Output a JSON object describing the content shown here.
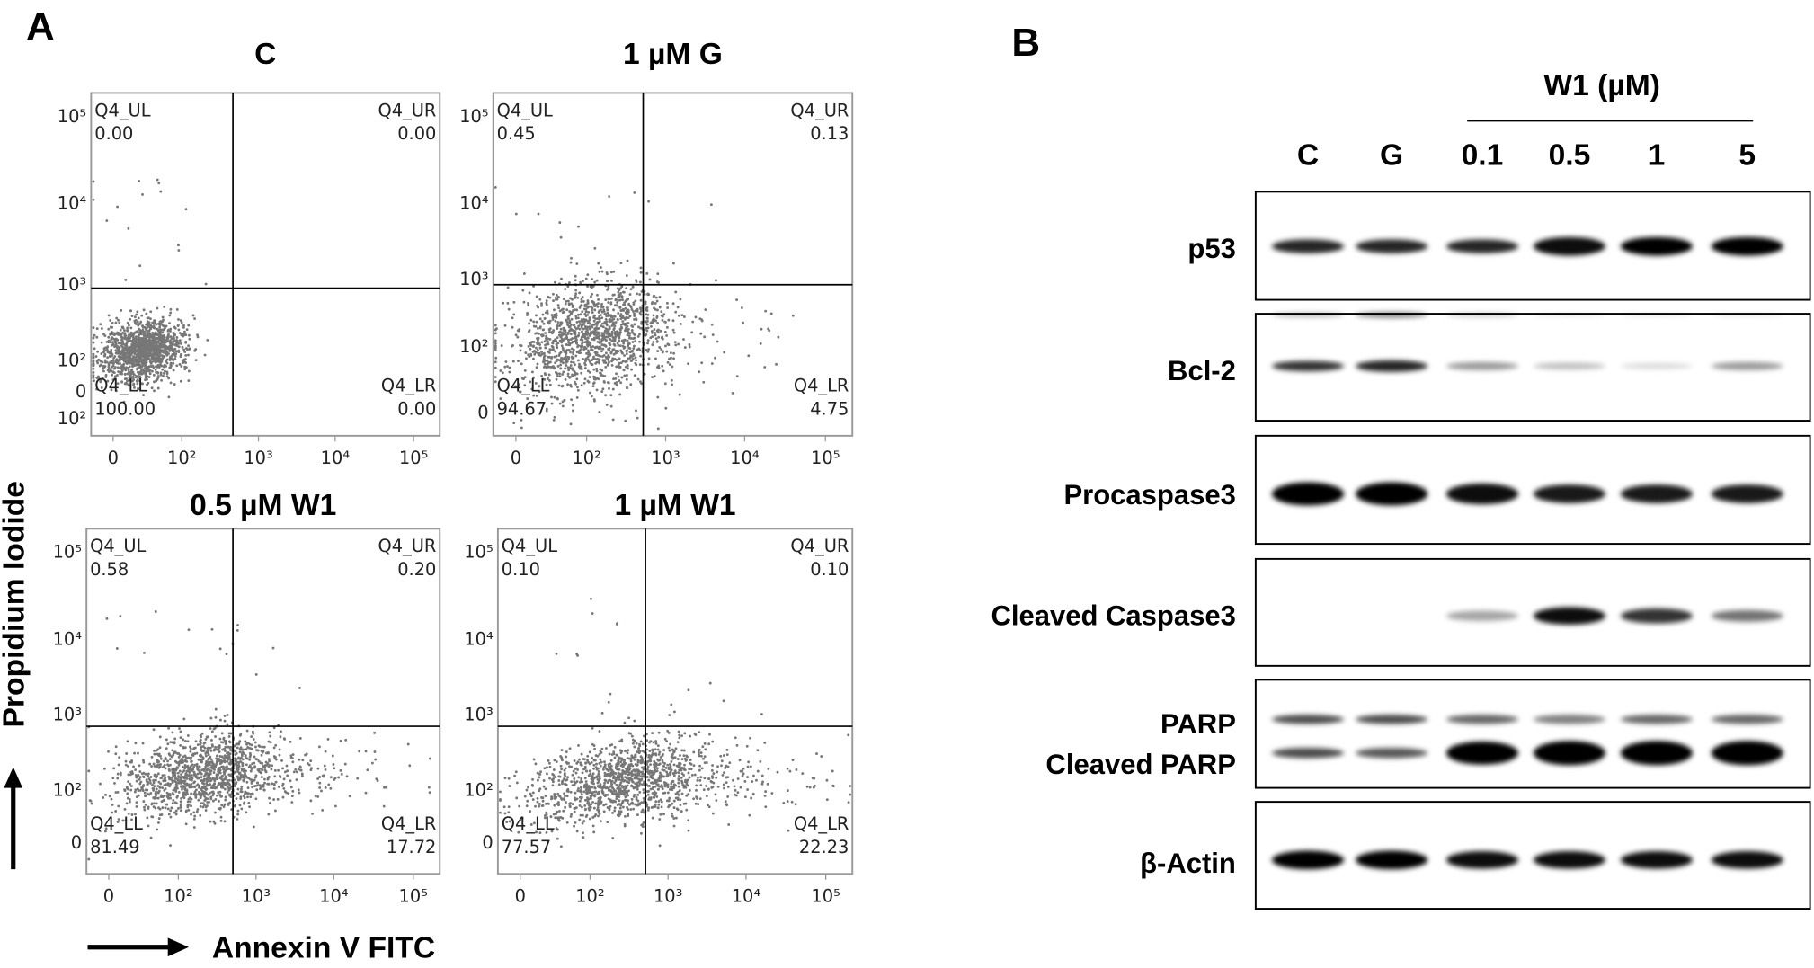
{
  "panel_a": {
    "label": "A",
    "x_axis_label": "Annexin V FITC",
    "y_axis_label": "Propidium Iodide",
    "plots": [
      {
        "title": "C",
        "quadrants": {
          "UL": {
            "name": "Q4_UL",
            "value": "0.00"
          },
          "UR": {
            "name": "Q4_UR",
            "value": "0.00"
          },
          "LL": {
            "name": "Q4_LL",
            "value": "100.00"
          },
          "LR": {
            "name": "Q4_LR",
            "value": "0.00"
          }
        },
        "yticks": [
          "10⁵",
          "10⁴",
          "10³",
          "10²",
          "0",
          "10²"
        ],
        "xticks": [
          "0",
          "10²",
          "10³",
          "10⁴",
          "10⁵"
        ]
      },
      {
        "title": "1 µM G",
        "quadrants": {
          "UL": {
            "name": "Q4_UL",
            "value": "0.45"
          },
          "UR": {
            "name": "Q4_UR",
            "value": "0.13"
          },
          "LL": {
            "name": "Q4_LL",
            "value": "94.67"
          },
          "LR": {
            "name": "Q4_LR",
            "value": "4.75"
          }
        },
        "yticks": [
          "10⁵",
          "10⁴",
          "10³",
          "10²",
          "0"
        ],
        "xticks": [
          "0",
          "10²",
          "10³",
          "10⁴",
          "10⁵"
        ]
      },
      {
        "title": "0.5 µM W1",
        "quadrants": {
          "UL": {
            "name": "Q4_UL",
            "value": "0.58"
          },
          "UR": {
            "name": "Q4_UR",
            "value": "0.20"
          },
          "LL": {
            "name": "Q4_LL",
            "value": "81.49"
          },
          "LR": {
            "name": "Q4_LR",
            "value": "17.72"
          }
        },
        "yticks": [
          "10⁵",
          "10⁴",
          "10³",
          "10²",
          "0"
        ],
        "xticks": [
          "0",
          "10²",
          "10³",
          "10⁴",
          "10⁵"
        ]
      },
      {
        "title": "1 µM W1",
        "quadrants": {
          "UL": {
            "name": "Q4_UL",
            "value": "0.10"
          },
          "UR": {
            "name": "Q4_UR",
            "value": "0.10"
          },
          "LL": {
            "name": "Q4_LL",
            "value": "77.57"
          },
          "LR": {
            "name": "Q4_LR",
            "value": "22.23"
          }
        },
        "yticks": [
          "10⁵",
          "10⁴",
          "10³",
          "10²",
          "0"
        ],
        "xticks": [
          "0",
          "10²",
          "10³",
          "10⁴",
          "10⁵"
        ]
      }
    ]
  },
  "panel_b": {
    "label": "B",
    "group_label": "W1 (µM)",
    "lanes": [
      "C",
      "G",
      "0.1",
      "0.5",
      "1",
      "5"
    ],
    "rows": [
      "p53",
      "Bcl-2",
      "Procaspase3",
      "Cleaved Caspase3",
      "PARP",
      "Cleaved PARP",
      "β-Actin"
    ]
  }
}
